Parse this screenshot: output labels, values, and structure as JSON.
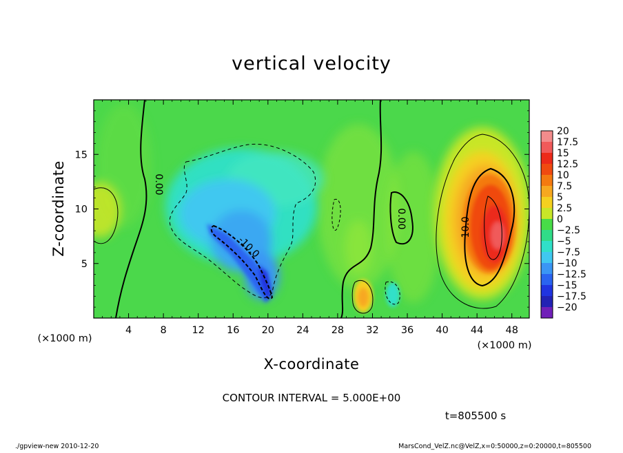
{
  "chart_data": {
    "type": "heatmap",
    "title": "vertical velocity",
    "xlabel": "X-coordinate",
    "ylabel": "Z-coordinate",
    "x_unit_label": "(×1000 m)",
    "z_unit_label": "(×1000 m)",
    "xlim": [
      0,
      50
    ],
    "ylim": [
      0,
      20
    ],
    "x_ticks": [
      4,
      8,
      12,
      16,
      20,
      24,
      28,
      32,
      36,
      40,
      44,
      48
    ],
    "y_ticks": [
      5,
      10,
      15
    ],
    "colorbar": {
      "levels": [
        20,
        17.5,
        15,
        12.5,
        10,
        7.5,
        5,
        2.5,
        0,
        -2.5,
        -5,
        -7.5,
        -10,
        -12.5,
        -15,
        -17.5,
        -20
      ],
      "labels": [
        "20",
        "17.5",
        "15",
        "12.5",
        "10",
        "7.5",
        "5",
        "2.5",
        "0",
        "−2.5",
        "−5",
        "−7.5",
        "−10",
        "−12.5",
        "−15",
        "−17.5",
        "−20"
      ],
      "colors": [
        "#f28c8c",
        "#f05a5a",
        "#ec2a1a",
        "#f04a10",
        "#f47a10",
        "#f7a820",
        "#f5d020",
        "#c8e628",
        "#48dc48",
        "#30dc88",
        "#30e0c8",
        "#40c8f0",
        "#3a96f4",
        "#2a64f0",
        "#2034e0",
        "#2222b4",
        "#7020b8"
      ]
    },
    "features": [
      {
        "kind": "updraft",
        "x": 45.5,
        "z": 8,
        "peak": 15
      },
      {
        "kind": "downdraft",
        "x": 18,
        "z": 5.5,
        "peak": -12.5
      },
      {
        "kind": "weak_updraft",
        "x": 30.5,
        "z": 2.5,
        "peak": 5
      },
      {
        "kind": "weak_updraft",
        "x": 1,
        "z": 10,
        "peak": 5
      }
    ],
    "contour_labels": [
      "0.00",
      "-10.0",
      "0.00",
      "10.0"
    ],
    "contour_interval_text": "CONTOUR INTERVAL = 5.000E+00",
    "time_text": "t=805500 s"
  },
  "footer": {
    "left": "./gpview-new 2010-12-20",
    "right": "MarsCond_VelZ.nc@VelZ,x=0:50000,z=0:20000,t=805500"
  }
}
